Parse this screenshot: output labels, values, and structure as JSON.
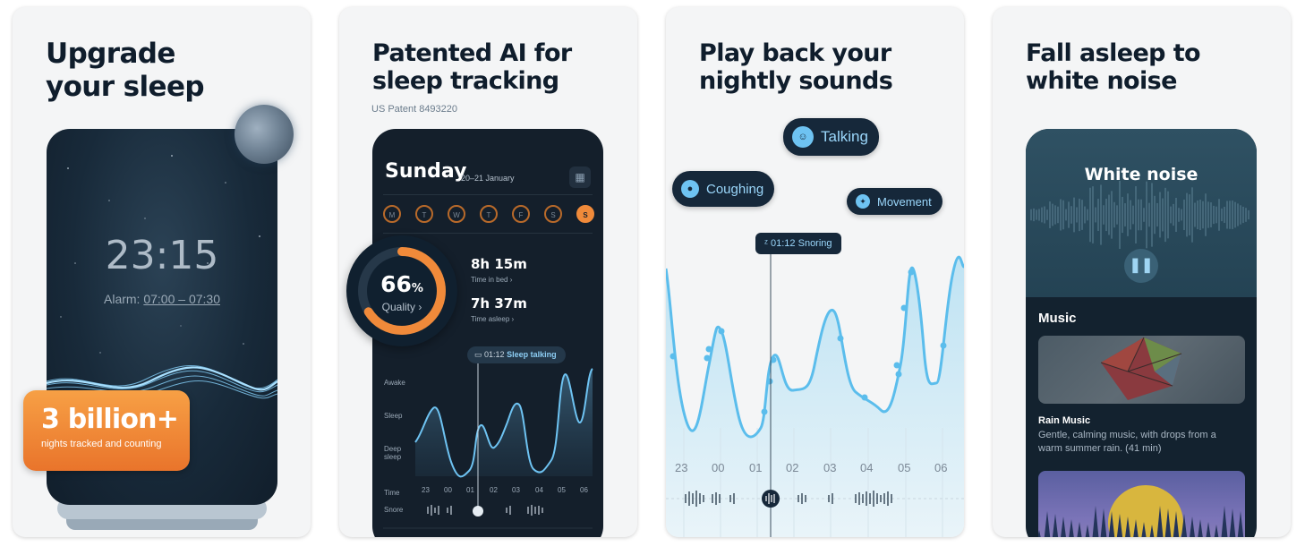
{
  "card1": {
    "headline_line1": "Upgrade",
    "headline_line2": "your sleep",
    "clock": "23:15",
    "alarm_label": "Alarm:",
    "alarm_value": "07:00 – 07:30",
    "badge_big": "3 billion+",
    "badge_small": "nights tracked and counting"
  },
  "card2": {
    "headline_line1": "Patented AI for",
    "headline_line2": "sleep tracking",
    "patent": "US Patent 8493220",
    "day": "Sunday",
    "date_range": "20–21 January",
    "week_days": [
      "M",
      "T",
      "W",
      "T",
      "F",
      "S",
      "S"
    ],
    "quality_value": "66",
    "quality_unit": "%",
    "quality_label": "Quality",
    "quality_fraction": 0.66,
    "time_in_bed": "8h 15m",
    "time_in_bed_label": "Time in bed",
    "time_asleep": "7h 37m",
    "time_asleep_label": "Time asleep",
    "event_time": "01:12",
    "event_label": "Sleep talking",
    "y_labels": [
      "Awake",
      "Sleep",
      "Deep sleep"
    ],
    "x_label": "Time",
    "snore_label": "Snore",
    "hours": [
      "23",
      "00",
      "01",
      "02",
      "03",
      "04",
      "05",
      "06"
    ]
  },
  "card3": {
    "headline_line1": "Play back your",
    "headline_line2": "nightly sounds",
    "chip_talking": "Talking",
    "chip_coughing": "Coughing",
    "chip_movement": "Movement",
    "snore_time": "01:12",
    "snore_label": "Snoring",
    "hours": [
      "23",
      "00",
      "01",
      "02",
      "03",
      "04",
      "05",
      "06"
    ]
  },
  "card4": {
    "headline_line1": "Fall asleep to",
    "headline_line2": "white noise",
    "player_title": "White noise",
    "music_heading": "Music",
    "track_title": "Rain Music",
    "track_desc": "Gentle, calming music, with drops from a warm summer rain. (41 min)"
  },
  "colors": {
    "orange": "#f08a3a",
    "navy": "#141f2b",
    "accent_blue": "#6ec3f2"
  }
}
